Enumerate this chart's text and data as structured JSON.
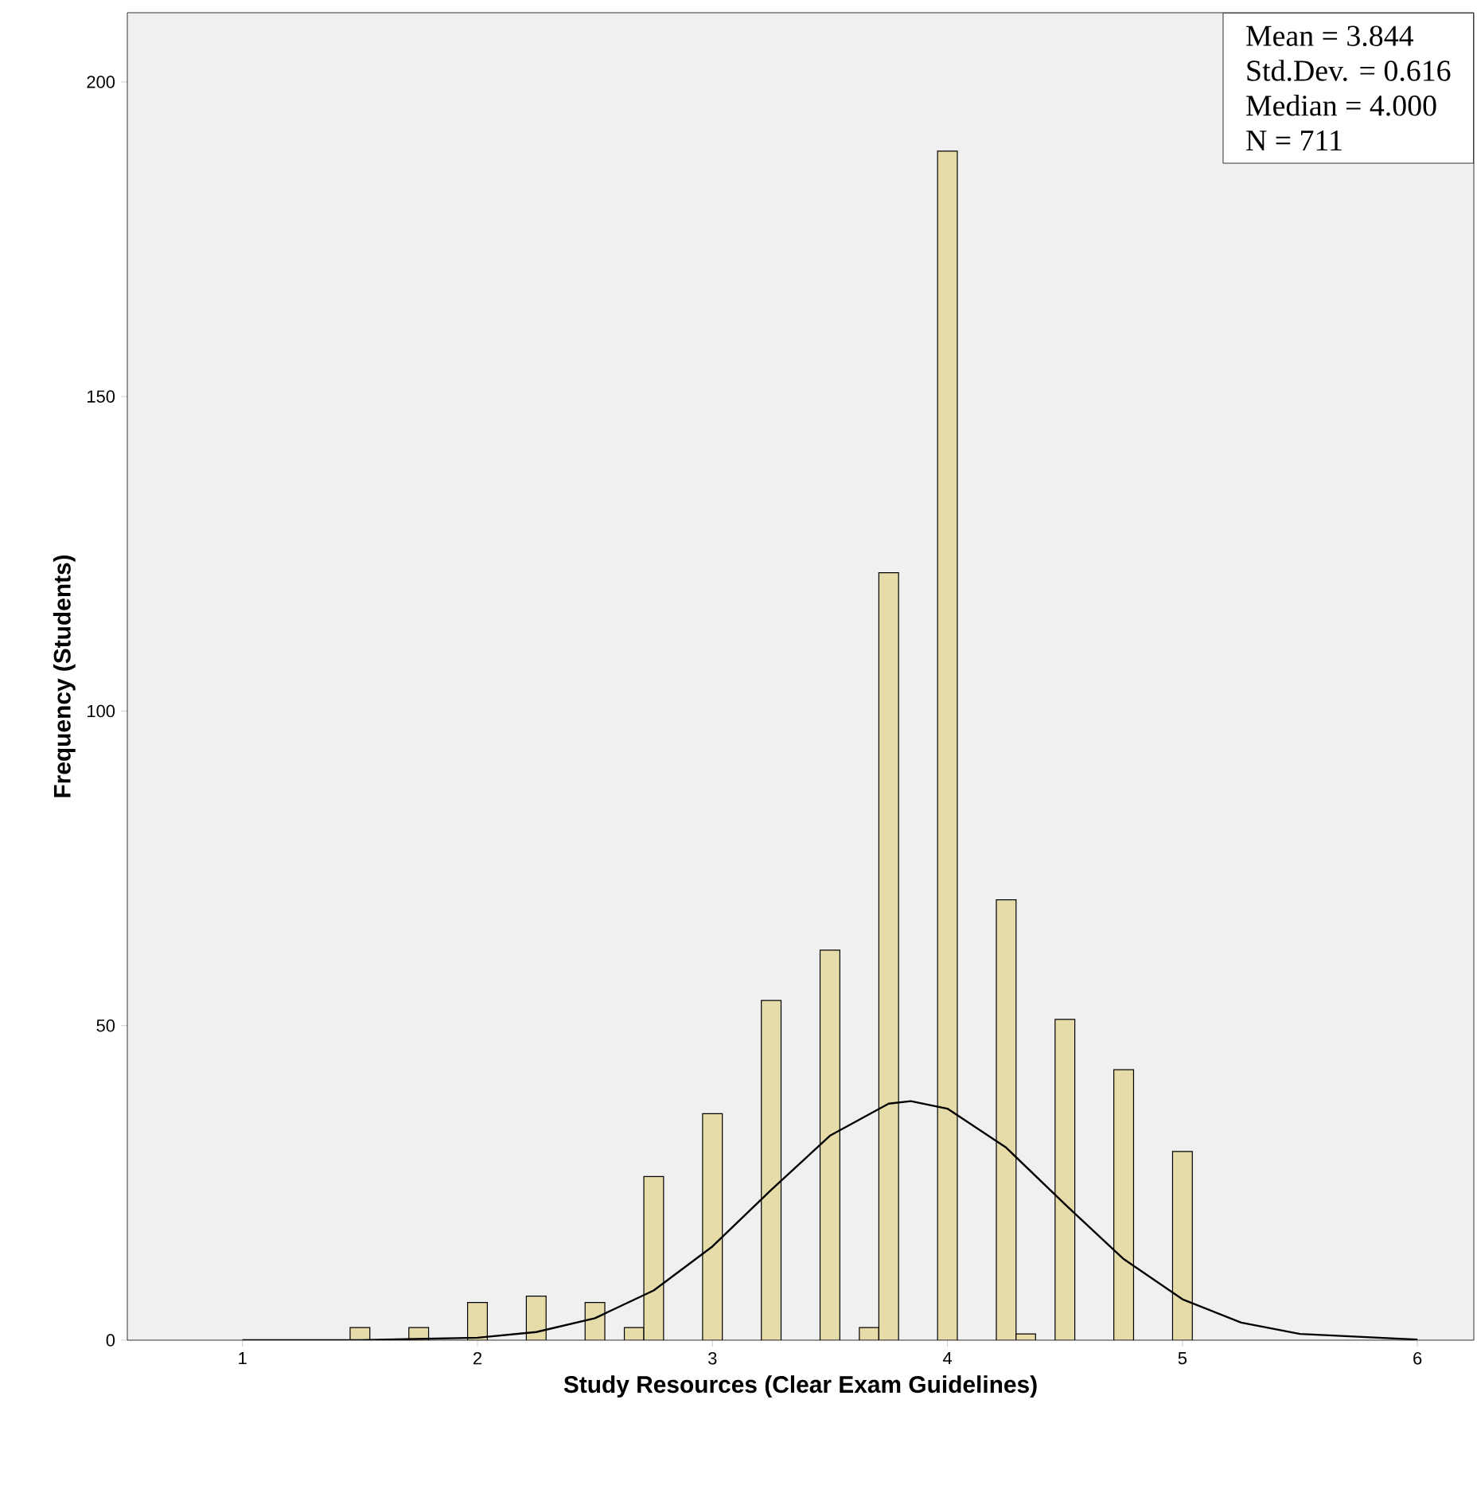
{
  "chart_data": {
    "type": "histogram",
    "xlabel": "Study Resources (Clear Exam Guidelines)",
    "ylabel": "Frequency (Students)",
    "annotations": [
      "Mean = 3.844",
      "Std.Dev. = 0.616",
      "Median = 4.000",
      "N = 711"
    ],
    "xlim": [
      0.51,
      6.24
    ],
    "ylim": [
      0,
      211
    ],
    "xticks": [
      1,
      2,
      3,
      4,
      5,
      6
    ],
    "yticks": [
      0,
      50,
      100,
      150,
      200
    ],
    "grid": false,
    "bins": [
      1.458,
      1.542,
      1.625,
      1.708,
      1.792,
      1.875,
      1.958,
      2.042,
      2.125,
      2.208,
      2.292,
      2.375,
      2.458,
      2.542,
      2.625,
      2.708,
      2.792,
      2.875,
      2.958,
      3.042,
      3.125,
      3.208,
      3.292,
      3.375,
      3.458,
      3.542,
      3.625,
      3.708,
      3.792,
      3.875,
      3.958,
      4.042,
      4.125,
      4.208,
      4.292,
      4.375,
      4.458,
      4.542,
      4.625,
      4.708,
      4.792,
      4.875,
      4.958,
      5.042
    ],
    "series": [
      {
        "color": "#e6dcaa",
        "values": [
          2,
          0,
          0,
          2,
          0,
          0,
          6,
          0,
          0,
          7,
          0,
          0,
          6,
          0,
          2,
          26,
          0,
          0,
          36,
          0,
          0,
          54,
          0,
          0,
          62,
          0,
          2,
          122,
          0,
          0,
          189,
          0,
          0,
          70,
          1,
          0,
          51,
          0,
          0,
          43,
          0,
          0,
          30
        ]
      },
      {
        "type": "line",
        "color": "#000000",
        "marker": "none",
        "line_style": "solid",
        "x": [
          1,
          1.5,
          2,
          2.25,
          2.5,
          2.75,
          3,
          3.25,
          3.5,
          3.75,
          3.844,
          4,
          4.25,
          4.5,
          4.75,
          5,
          5.25,
          5.5,
          6
        ],
        "values": [
          0,
          0,
          0.4,
          1.3,
          3.5,
          7.9,
          14.9,
          23.9,
          32.5,
          37.6,
          38,
          36.8,
          30.6,
          21.6,
          12.9,
          6.5,
          2.8,
          1,
          0.1
        ]
      }
    ]
  }
}
